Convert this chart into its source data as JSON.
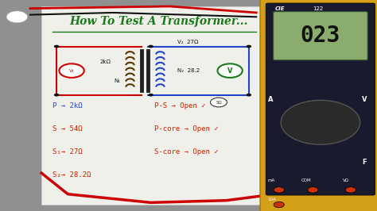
{
  "bg_color": "#909090",
  "paper_color": "#f0f0eb",
  "title": "How To Test A Transformer...",
  "title_color": "#1a7a1a",
  "title_fontsize": 10,
  "multimeter_yellow": "#d4a017",
  "multimeter_dark": "#1a1a2e",
  "display_color": "#8aad6e",
  "display_text": "023",
  "wire_red": "#cc0000",
  "wire_black": "#111111",
  "circuit_red": "#cc0000",
  "circuit_blue": "#2244cc",
  "notes_red": "#cc2200",
  "notes_blue": "#2244cc",
  "left_notes": [
    "P → 2kΩ",
    "S → 54Ω",
    "S₁→ 27Ω",
    "S₂→ 28.2Ω"
  ],
  "right_notes": [
    "P-S → Open ✓",
    "P-core → Open ✓",
    "S-core → Open ✓"
  ],
  "brand": "CIE",
  "model": "122"
}
